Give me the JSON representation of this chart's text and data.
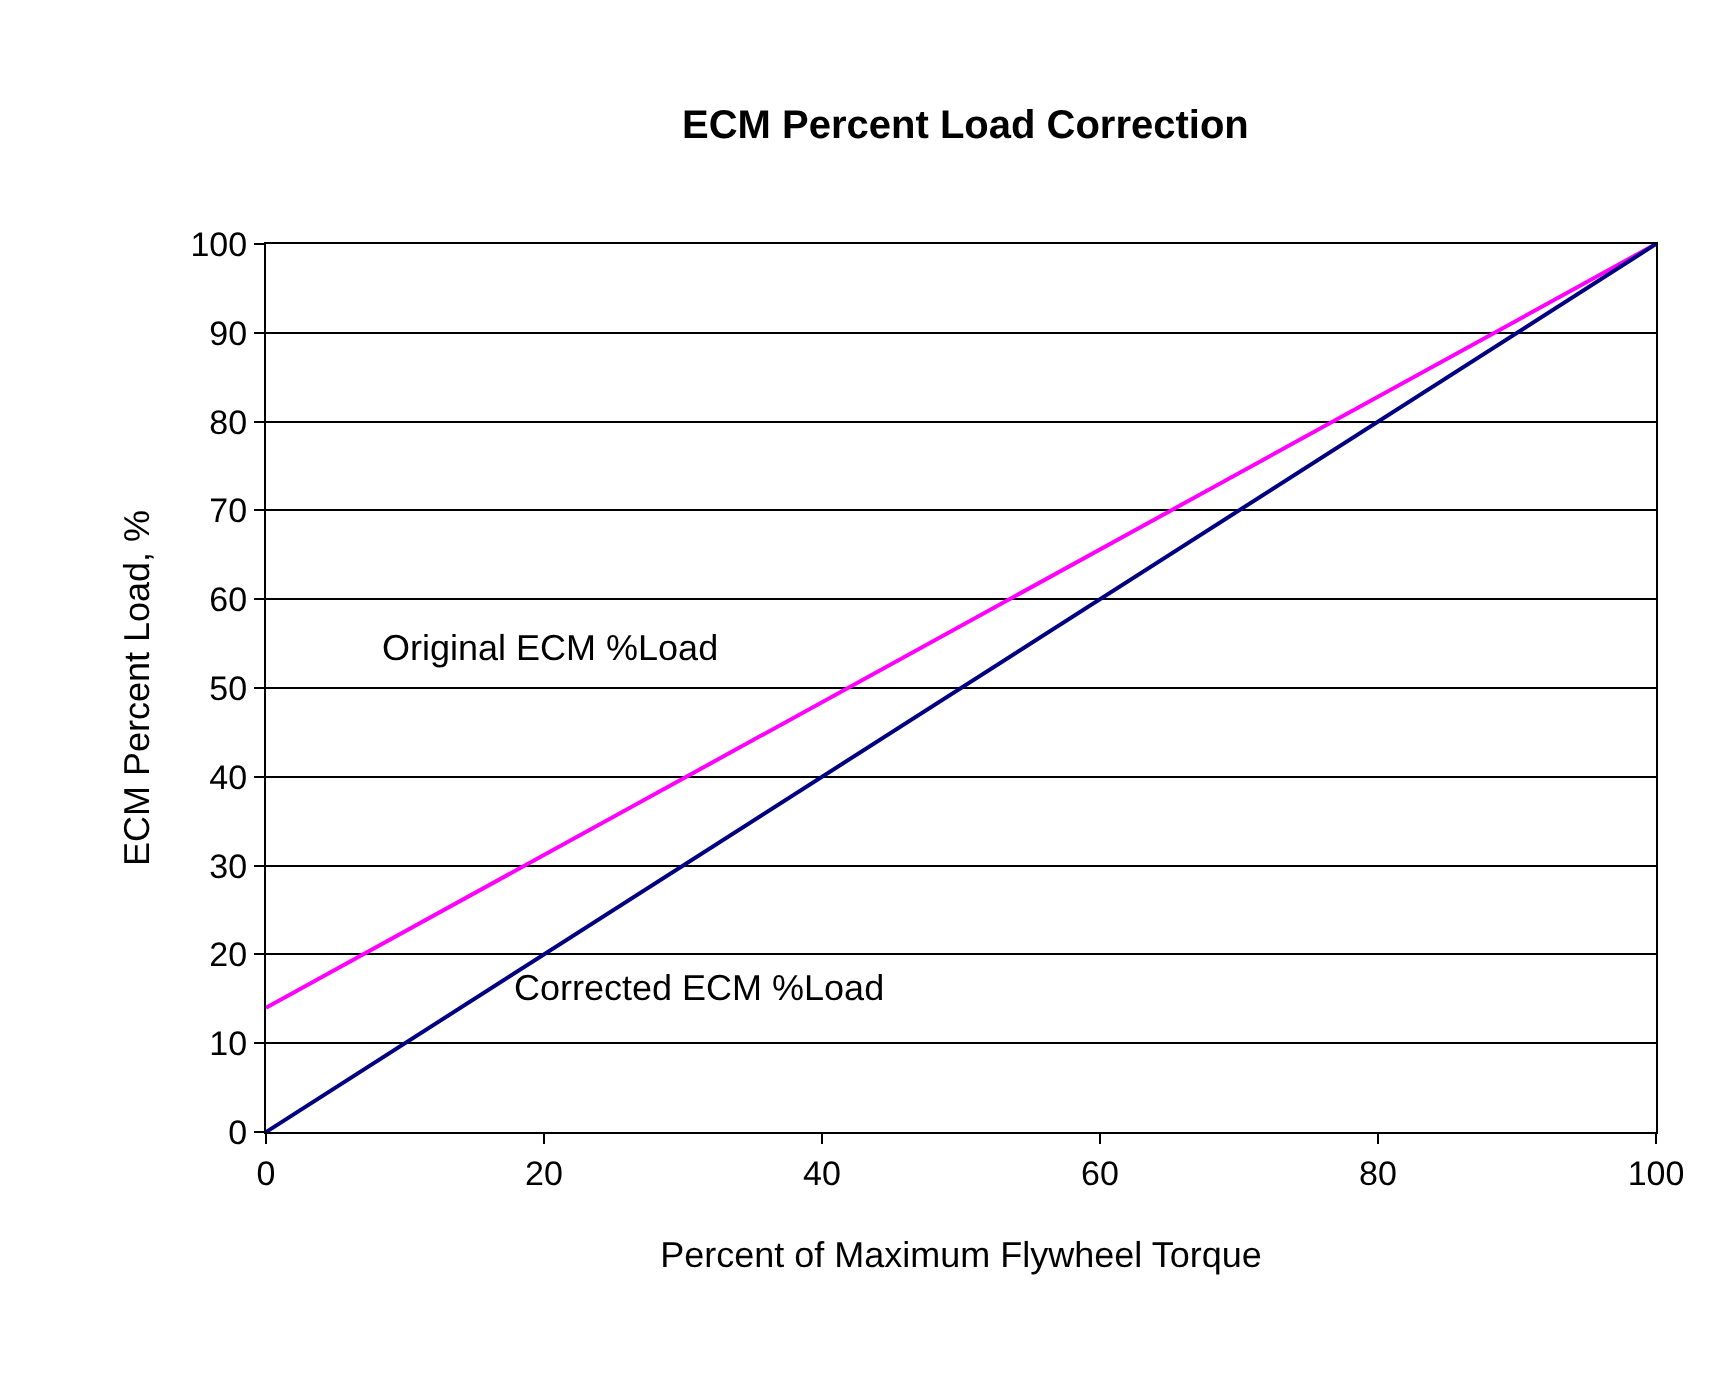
{
  "chart_data": {
    "type": "line",
    "title": "ECM Percent Load Correction",
    "xlabel": "Percent of Maximum Flywheel Torque",
    "ylabel": "ECM Percent Load, %",
    "x": [
      0,
      100
    ],
    "series": [
      {
        "name": "Original ECM %Load",
        "color": "#ff00ff",
        "values": [
          14,
          100
        ]
      },
      {
        "name": "Corrected ECM %Load",
        "color": "#000080",
        "values": [
          0,
          100
        ]
      }
    ],
    "xlim": [
      0,
      100
    ],
    "xticks": [
      0,
      20,
      40,
      60,
      80,
      100
    ],
    "ylim": [
      0,
      100
    ],
    "yticks": [
      0,
      10,
      20,
      30,
      40,
      50,
      60,
      70,
      80,
      90,
      100
    ],
    "grid": "y",
    "legend": false,
    "marker": "none",
    "line_style": "solid"
  }
}
